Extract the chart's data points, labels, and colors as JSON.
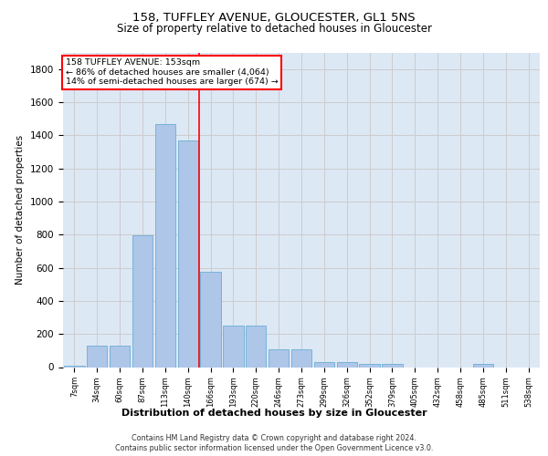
{
  "title1": "158, TUFFLEY AVENUE, GLOUCESTER, GL1 5NS",
  "title2": "Size of property relative to detached houses in Gloucester",
  "xlabel": "Distribution of detached houses by size in Gloucester",
  "ylabel": "Number of detached properties",
  "footnote1": "Contains HM Land Registry data © Crown copyright and database right 2024.",
  "footnote2": "Contains public sector information licensed under the Open Government Licence v3.0.",
  "bar_labels": [
    "7sqm",
    "34sqm",
    "60sqm",
    "87sqm",
    "113sqm",
    "140sqm",
    "166sqm",
    "193sqm",
    "220sqm",
    "246sqm",
    "273sqm",
    "299sqm",
    "326sqm",
    "352sqm",
    "379sqm",
    "405sqm",
    "432sqm",
    "458sqm",
    "485sqm",
    "511sqm",
    "538sqm"
  ],
  "bar_values": [
    10,
    130,
    130,
    795,
    1470,
    1370,
    575,
    248,
    248,
    108,
    108,
    30,
    30,
    20,
    20,
    0,
    0,
    0,
    20,
    0,
    0
  ],
  "bar_color": "#aec6e8",
  "bar_edgecolor": "#6aaed6",
  "ylim": [
    0,
    1900
  ],
  "yticks": [
    0,
    200,
    400,
    600,
    800,
    1000,
    1200,
    1400,
    1600,
    1800
  ],
  "property_line_x": 5.5,
  "annotation_line1": "158 TUFFLEY AVENUE: 153sqm",
  "annotation_line2": "← 86% of detached houses are smaller (4,064)",
  "annotation_line3": "14% of semi-detached houses are larger (674) →",
  "box_color": "#ff0000",
  "vline_color": "#ff0000",
  "grid_color": "#cccccc",
  "background_color": "#dde8f5"
}
